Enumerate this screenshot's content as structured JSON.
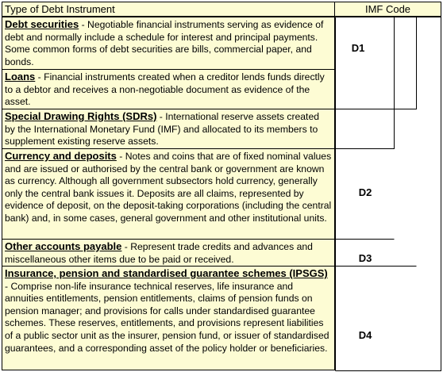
{
  "header": {
    "type_label": "Type of Debt Instrument",
    "code_label": "IMF Code"
  },
  "rows": [
    {
      "term": "Debt securities",
      "desc": " - Negotiable financial instruments serving as evidence of debt and normally include a schedule for interest and principal payments. Some common forms of debt securities are bills, commercial paper, and bonds."
    },
    {
      "term": "Loans",
      "desc": " - Financial instruments created when a creditor lends funds directly to a debtor and receives a non-negotiable document as evidence of the asset."
    },
    {
      "term": "Special Drawing Rights (SDRs)",
      "desc": " - International reserve assets created by the International Monetary Fund (IMF) and allocated to its members to supplement existing reserve assets."
    },
    {
      "term": "Currency and deposits",
      "desc": " - Notes and coins that are of fixed nominal values and are issued or authorised by the central bank or government are known as currency. Although all government subsectors hold currency, generally only the central bank issues it. Deposits are all claims, represented by evidence of deposit, on the deposit-taking corporations (including the central bank) and, in some cases, general government and other institutional units."
    },
    {
      "term": "Other accounts payable",
      "desc": " - Represent trade credits and advances and miscellaneous other items due to be paid or received."
    },
    {
      "term": "Insurance, pension and standardised guarantee schemes (IPSGS)",
      "desc": " - Comprise non-life insurance technical reserves, life insurance and annuities entitlements, pension entitlements, claims of pension funds on pension manager; and provisions for calls under standardised guarantee schemes. These reserves, entitlements, and provisions represent liabilities of a public sector unit as the insurer, pension fund, or issuer of standardised guarantees, and a corresponding asset of the policy holder or beneficiaries."
    }
  ],
  "codes": {
    "d1": "D1",
    "d2": "D2",
    "d3": "D3",
    "d4": "D4"
  }
}
